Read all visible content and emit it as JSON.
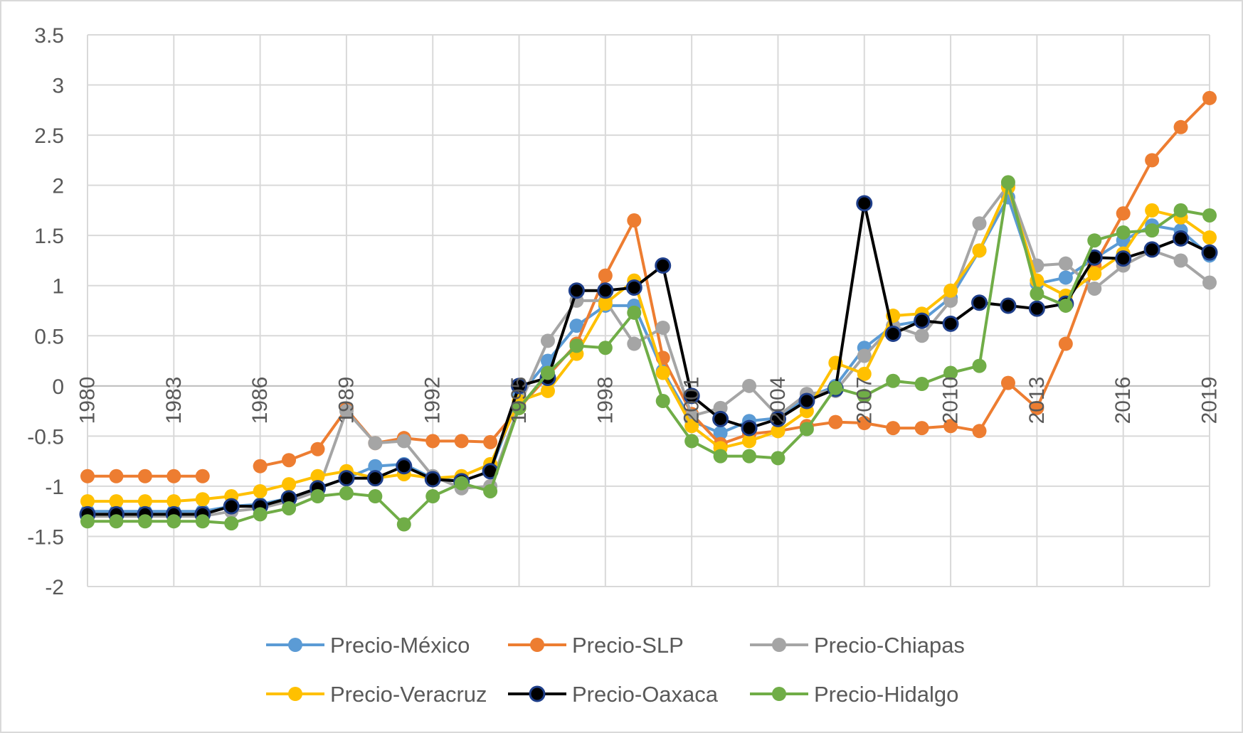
{
  "chart_data": {
    "type": "line",
    "title": "",
    "xlabel": "",
    "ylabel": "",
    "x": [
      1980,
      1981,
      1982,
      1983,
      1984,
      1985,
      1986,
      1987,
      1988,
      1989,
      1990,
      1991,
      1992,
      1993,
      1994,
      1995,
      1996,
      1997,
      1998,
      1999,
      2000,
      2001,
      2002,
      2003,
      2004,
      2005,
      2006,
      2007,
      2008,
      2009,
      2010,
      2011,
      2012,
      2013,
      2014,
      2015,
      2016,
      2017,
      2018,
      2019
    ],
    "x_tick_labels": [
      "1980",
      "1983",
      "1986",
      "1989",
      "1992",
      "1995",
      "1998",
      "2001",
      "2004",
      "2007",
      "2010",
      "2013",
      "2016",
      "2019"
    ],
    "x_tick_values": [
      1980,
      1983,
      1986,
      1989,
      1992,
      1995,
      1998,
      2001,
      2004,
      2007,
      2010,
      2013,
      2016,
      2019
    ],
    "ylim": [
      -2,
      3.5
    ],
    "y_ticks": [
      -2,
      -1.5,
      -1,
      -0.5,
      0,
      0.5,
      1,
      1.5,
      2,
      2.5,
      3,
      3.5
    ],
    "y_tick_labels": [
      "-2",
      "-1.5",
      "-1",
      "-0.5",
      "0",
      "0.5",
      "1",
      "1.5",
      "2",
      "2.5",
      "3",
      "3.5"
    ],
    "grid": "vertical and horizontal",
    "legend_position": "bottom",
    "series": [
      {
        "name": "Precio-México",
        "color": "#5b9bd5",
        "marker_edge": "#5b9bd5",
        "values": [
          -1.25,
          -1.25,
          -1.25,
          -1.25,
          -1.25,
          -1.2,
          -1.18,
          -1.12,
          -1.02,
          -0.92,
          -0.8,
          -0.78,
          -0.92,
          -0.95,
          -0.85,
          -0.1,
          0.25,
          0.6,
          0.8,
          0.8,
          0.15,
          -0.35,
          -0.47,
          -0.35,
          -0.32,
          -0.12,
          0.0,
          0.38,
          0.6,
          0.65,
          0.88,
          1.35,
          1.88,
          1.02,
          1.08,
          1.27,
          1.45,
          1.6,
          1.55,
          1.3
        ]
      },
      {
        "name": "Precio-SLP",
        "color": "#ed7d31",
        "marker_edge": "#ed7d31",
        "values": [
          -0.9,
          -0.9,
          -0.9,
          -0.9,
          -0.9,
          null,
          -0.8,
          -0.74,
          -0.63,
          -0.23,
          -0.57,
          -0.52,
          -0.55,
          -0.55,
          -0.56,
          -0.22,
          0.1,
          0.42,
          1.1,
          1.65,
          0.28,
          -0.28,
          -0.58,
          -0.48,
          -0.45,
          -0.4,
          -0.36,
          -0.37,
          -0.42,
          -0.42,
          -0.4,
          -0.45,
          0.03,
          -0.22,
          0.42,
          1.2,
          1.72,
          2.25,
          2.58,
          2.87
        ]
      },
      {
        "name": "Precio-Chiapas",
        "color": "#a5a5a5",
        "marker_edge": "#a5a5a5",
        "values": [
          -1.3,
          -1.3,
          -1.3,
          -1.3,
          -1.3,
          -1.25,
          -1.22,
          -1.15,
          -1.05,
          -0.25,
          -0.57,
          -0.55,
          -0.9,
          -1.02,
          -1.0,
          -0.2,
          0.45,
          0.85,
          0.85,
          0.42,
          0.58,
          -0.3,
          -0.22,
          0.0,
          -0.3,
          -0.08,
          -0.05,
          0.3,
          0.6,
          0.5,
          0.85,
          1.62,
          2.0,
          1.2,
          1.22,
          0.97,
          1.2,
          1.35,
          1.25,
          1.03
        ]
      },
      {
        "name": "Precio-Veracruz",
        "color": "#ffc000",
        "marker_edge": "#ffc000",
        "values": [
          -1.15,
          -1.15,
          -1.15,
          -1.15,
          -1.13,
          -1.1,
          -1.05,
          -0.98,
          -0.9,
          -0.85,
          -0.92,
          -0.88,
          -0.92,
          -0.9,
          -0.78,
          -0.15,
          -0.05,
          0.32,
          0.82,
          1.05,
          0.13,
          -0.4,
          -0.62,
          -0.55,
          -0.45,
          -0.25,
          0.23,
          0.12,
          0.7,
          0.72,
          0.95,
          1.35,
          1.98,
          1.05,
          0.9,
          1.12,
          1.32,
          1.75,
          1.68,
          1.48
        ]
      },
      {
        "name": "Precio-Oaxaca",
        "color": "#000000",
        "marker_edge": "#1f3f8a",
        "values": [
          -1.28,
          -1.28,
          -1.28,
          -1.28,
          -1.28,
          -1.2,
          -1.2,
          -1.12,
          -1.02,
          -0.92,
          -0.92,
          -0.8,
          -0.93,
          -0.95,
          -0.85,
          0.0,
          0.08,
          0.95,
          0.95,
          0.98,
          1.2,
          -0.1,
          -0.33,
          -0.42,
          -0.33,
          -0.15,
          -0.03,
          1.82,
          0.52,
          0.65,
          0.62,
          0.83,
          0.8,
          0.77,
          0.82,
          1.28,
          1.27,
          1.36,
          1.47,
          1.33
        ]
      },
      {
        "name": "Precio-Hidalgo",
        "color": "#70ad47",
        "marker_edge": "#70ad47",
        "values": [
          -1.35,
          -1.35,
          -1.35,
          -1.35,
          -1.35,
          -1.37,
          -1.28,
          -1.22,
          -1.1,
          -1.07,
          -1.1,
          -1.38,
          -1.1,
          -0.97,
          -1.05,
          -0.22,
          0.13,
          0.4,
          0.38,
          0.73,
          -0.15,
          -0.55,
          -0.7,
          -0.7,
          -0.72,
          -0.43,
          -0.02,
          -0.1,
          0.05,
          0.02,
          0.13,
          0.2,
          2.03,
          0.92,
          0.8,
          1.45,
          1.53,
          1.55,
          1.75,
          1.7
        ]
      }
    ]
  }
}
